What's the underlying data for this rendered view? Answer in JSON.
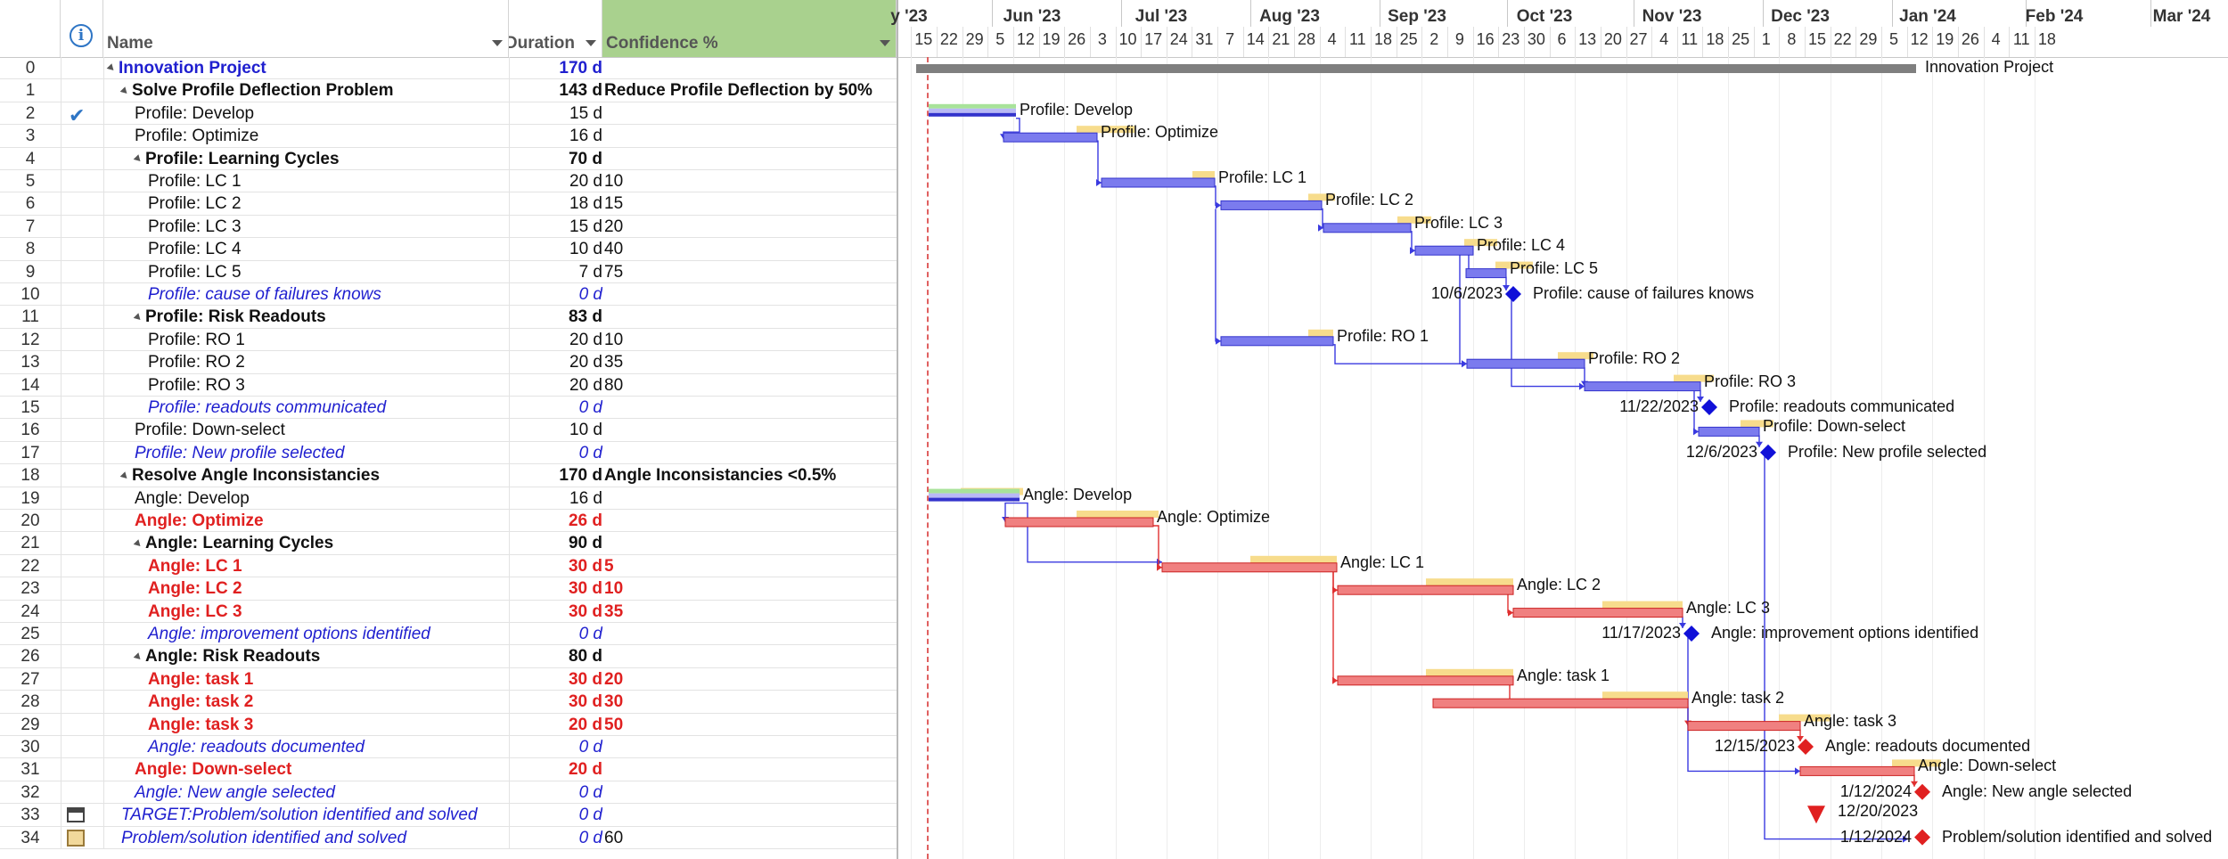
{
  "columns": {
    "name": "Name",
    "duration": "Duration",
    "confidence": "Confidence %"
  },
  "timescale": {
    "months": [
      "y '23",
      "Jun '23",
      "Jul '23",
      "Aug '23",
      "Sep '23",
      "Oct '23",
      "Nov '23",
      "Dec '23",
      "Jan '24",
      "Feb '24",
      "Mar '24"
    ],
    "days": [
      "15",
      "22",
      "29",
      "5",
      "12",
      "19",
      "26",
      "3",
      "10",
      "17",
      "24",
      "31",
      "7",
      "14",
      "21",
      "28",
      "4",
      "11",
      "18",
      "25",
      "2",
      "9",
      "16",
      "23",
      "30",
      "6",
      "13",
      "20",
      "27",
      "4",
      "11",
      "18",
      "25",
      "1",
      "8",
      "15",
      "22",
      "29",
      "5",
      "12",
      "19",
      "26",
      "4",
      "11",
      "18"
    ]
  },
  "rows": [
    {
      "id": "0",
      "name": "Innovation Project",
      "duration": "170 d",
      "confidence": "",
      "style": "proj",
      "level": 0,
      "summary": true
    },
    {
      "id": "1",
      "name": "Solve Profile Deflection Problem",
      "duration": "143 d",
      "confidence": "Reduce Profile Deflection by 50%",
      "style": "bold",
      "level": 1,
      "summary": true
    },
    {
      "id": "2",
      "name": "Profile: Develop",
      "duration": "15 d",
      "confidence": "",
      "style": "",
      "level": 2,
      "indicator": "check"
    },
    {
      "id": "3",
      "name": "Profile: Optimize",
      "duration": "16 d",
      "confidence": "",
      "style": "",
      "level": 2
    },
    {
      "id": "4",
      "name": "Profile: Learning Cycles",
      "duration": "70 d",
      "confidence": "",
      "style": "bold",
      "level": 2,
      "summary": true
    },
    {
      "id": "5",
      "name": "Profile: LC 1",
      "duration": "20 d",
      "confidence": "10",
      "style": "",
      "level": 3
    },
    {
      "id": "6",
      "name": "Profile: LC 2",
      "duration": "18 d",
      "confidence": "15",
      "style": "",
      "level": 3
    },
    {
      "id": "7",
      "name": "Profile: LC 3",
      "duration": "15 d",
      "confidence": "20",
      "style": "",
      "level": 3
    },
    {
      "id": "8",
      "name": "Profile: LC 4",
      "duration": "10 d",
      "confidence": "40",
      "style": "",
      "level": 3
    },
    {
      "id": "9",
      "name": "Profile: LC 5",
      "duration": "7 d",
      "confidence": "75",
      "style": "",
      "level": 3
    },
    {
      "id": "10",
      "name": "Profile: cause of failures knows",
      "duration": "0 d",
      "confidence": "",
      "style": "mile",
      "level": 3
    },
    {
      "id": "11",
      "name": "Profile: Risk Readouts",
      "duration": "83 d",
      "confidence": "",
      "style": "bold",
      "level": 2,
      "summary": true
    },
    {
      "id": "12",
      "name": "Profile: RO 1",
      "duration": "20 d",
      "confidence": "10",
      "style": "",
      "level": 3
    },
    {
      "id": "13",
      "name": "Profile: RO 2",
      "duration": "20 d",
      "confidence": "35",
      "style": "",
      "level": 3
    },
    {
      "id": "14",
      "name": "Profile: RO 3",
      "duration": "20 d",
      "confidence": "80",
      "style": "",
      "level": 3
    },
    {
      "id": "15",
      "name": "Profile: readouts communicated",
      "duration": "0 d",
      "confidence": "",
      "style": "mile",
      "level": 3
    },
    {
      "id": "16",
      "name": "Profile: Down-select",
      "duration": "10 d",
      "confidence": "",
      "style": "",
      "level": 2
    },
    {
      "id": "17",
      "name": "Profile: New profile selected",
      "duration": "0 d",
      "confidence": "",
      "style": "mile",
      "level": 2
    },
    {
      "id": "18",
      "name": "Resolve Angle Inconsistancies",
      "duration": "170 d",
      "confidence": "Angle Inconsistancies <0.5%",
      "style": "bold",
      "level": 1,
      "summary": true
    },
    {
      "id": "19",
      "name": "Angle: Develop",
      "duration": "16 d",
      "confidence": "",
      "style": "",
      "level": 2
    },
    {
      "id": "20",
      "name": "Angle: Optimize",
      "duration": "26 d",
      "confidence": "",
      "style": "red",
      "level": 2
    },
    {
      "id": "21",
      "name": "Angle: Learning Cycles",
      "duration": "90 d",
      "confidence": "",
      "style": "bold",
      "level": 2,
      "summary": true
    },
    {
      "id": "22",
      "name": "Angle: LC 1",
      "duration": "30 d",
      "confidence": "5",
      "style": "red",
      "level": 3
    },
    {
      "id": "23",
      "name": "Angle: LC 2",
      "duration": "30 d",
      "confidence": "10",
      "style": "red",
      "level": 3
    },
    {
      "id": "24",
      "name": "Angle: LC 3",
      "duration": "30 d",
      "confidence": "35",
      "style": "red",
      "level": 3
    },
    {
      "id": "25",
      "name": "Angle: improvement options identified",
      "duration": "0 d",
      "confidence": "",
      "style": "mile",
      "level": 3
    },
    {
      "id": "26",
      "name": "Angle: Risk Readouts",
      "duration": "80 d",
      "confidence": "",
      "style": "bold",
      "level": 2,
      "summary": true
    },
    {
      "id": "27",
      "name": "Angle: task 1",
      "duration": "30 d",
      "confidence": "20",
      "style": "red",
      "level": 3
    },
    {
      "id": "28",
      "name": "Angle: task 2",
      "duration": "30 d",
      "confidence": "30",
      "style": "red",
      "level": 3
    },
    {
      "id": "29",
      "name": "Angle: task 3",
      "duration": "20 d",
      "confidence": "50",
      "style": "red",
      "level": 3
    },
    {
      "id": "30",
      "name": "Angle: readouts documented",
      "duration": "0 d",
      "confidence": "",
      "style": "mile",
      "level": 3
    },
    {
      "id": "31",
      "name": "Angle: Down-select",
      "duration": "20 d",
      "confidence": "",
      "style": "red",
      "level": 2
    },
    {
      "id": "32",
      "name": "Angle: New angle selected",
      "duration": "0 d",
      "confidence": "",
      "style": "mile",
      "level": 2
    },
    {
      "id": "33",
      "name": "TARGET:Problem/solution identified and solved",
      "duration": "0 d",
      "confidence": "",
      "style": "mile",
      "level": 1,
      "indicator": "calendar"
    },
    {
      "id": "34",
      "name": "Problem/solution identified and solved",
      "duration": "0 d",
      "confidence": "60",
      "style": "mile",
      "level": 1,
      "indicator": "note"
    }
  ],
  "bars": [
    {
      "row": 0,
      "type": "summary",
      "label": "Innovation Project"
    },
    {
      "row": 2,
      "type": "task",
      "color": "blue",
      "label": "Profile: Develop"
    },
    {
      "row": 3,
      "type": "task",
      "color": "blue",
      "label": "Profile: Optimize"
    },
    {
      "row": 5,
      "type": "task",
      "color": "blue",
      "label": "Profile: LC 1"
    },
    {
      "row": 6,
      "type": "task",
      "color": "blue",
      "label": "Profile: LC 2"
    },
    {
      "row": 7,
      "type": "task",
      "color": "blue",
      "label": "Profile: LC 3"
    },
    {
      "row": 8,
      "type": "task",
      "color": "blue",
      "label": "Profile: LC 4"
    },
    {
      "row": 9,
      "type": "task",
      "color": "blue",
      "label": "Profile: LC 5"
    },
    {
      "row": 10,
      "type": "milestone",
      "color": "blue",
      "date": "10/6/2023",
      "label": "Profile: cause of failures knows"
    },
    {
      "row": 12,
      "type": "task",
      "color": "blue",
      "label": "Profile: RO 1"
    },
    {
      "row": 13,
      "type": "task",
      "color": "blue",
      "label": "Profile: RO 2"
    },
    {
      "row": 14,
      "type": "task",
      "color": "blue",
      "label": "Profile: RO 3"
    },
    {
      "row": 15,
      "type": "milestone",
      "color": "blue",
      "date": "11/22/2023",
      "label": "Profile: readouts communicated"
    },
    {
      "row": 16,
      "type": "task",
      "color": "blue",
      "label": "Profile: Down-select"
    },
    {
      "row": 17,
      "type": "milestone",
      "color": "blue",
      "date": "12/6/2023",
      "label": "Profile: New profile selected"
    },
    {
      "row": 19,
      "type": "task",
      "color": "blue",
      "label": "Angle: Develop"
    },
    {
      "row": 20,
      "type": "task",
      "color": "red",
      "label": "Angle: Optimize"
    },
    {
      "row": 22,
      "type": "task",
      "color": "red",
      "label": "Angle: LC 1"
    },
    {
      "row": 23,
      "type": "task",
      "color": "red",
      "label": "Angle: LC 2"
    },
    {
      "row": 24,
      "type": "task",
      "color": "red",
      "label": "Angle: LC 3"
    },
    {
      "row": 25,
      "type": "milestone",
      "color": "blue",
      "date": "11/17/2023",
      "label": "Angle: improvement options identified"
    },
    {
      "row": 27,
      "type": "task",
      "color": "red",
      "label": "Angle: task 1"
    },
    {
      "row": 28,
      "type": "task",
      "color": "red",
      "label": "Angle: task 2"
    },
    {
      "row": 29,
      "type": "task",
      "color": "red",
      "label": "Angle: task 3"
    },
    {
      "row": 30,
      "type": "milestone",
      "color": "red",
      "date": "12/15/2023",
      "label": "Angle: readouts documented"
    },
    {
      "row": 31,
      "type": "task",
      "color": "red",
      "label": "Angle: Down-select"
    },
    {
      "row": 32,
      "type": "milestone",
      "color": "red",
      "date": "1/12/2024",
      "label": "Angle: New angle selected"
    },
    {
      "row": 33,
      "type": "deadline",
      "color": "red",
      "date": "12/20/2023",
      "label": ""
    },
    {
      "row": 34,
      "type": "milestone",
      "color": "red",
      "date": "1/12/2024",
      "label": "Problem/solution identified and solved"
    }
  ],
  "colors": {
    "task_blue": "#7b7bee",
    "task_blue_border": "#3333cc",
    "task_red": "#f08080",
    "task_red_border": "#cc2222",
    "baseline": "#f7dc8c",
    "summary": "#7f7f7f",
    "milestone_blue": "#1010d8",
    "milestone_red": "#e02020",
    "link_blue": "#3a3ae0",
    "link_red": "#e03030",
    "header_confidence": "#a9d18e"
  }
}
